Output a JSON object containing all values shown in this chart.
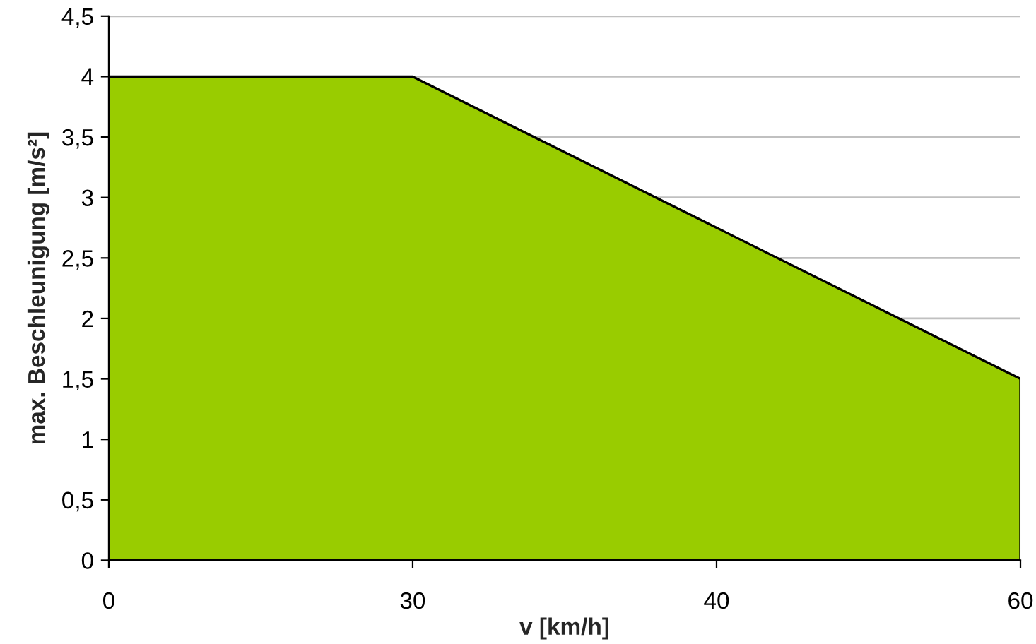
{
  "chart_data": {
    "type": "area",
    "xlabel": "v [km/h]",
    "ylabel": "max. Beschleunigung [m/s²]",
    "categories": [
      "0",
      "30",
      "40",
      "60"
    ],
    "series": [
      {
        "color": "#99cc00",
        "values": [
          4,
          4,
          2.75,
          1.5
        ]
      }
    ],
    "ylim": [
      0,
      4.5
    ],
    "yticks": [
      0,
      {
        "value": 0.5,
        "label": "0,5"
      },
      1,
      {
        "value": 1.5,
        "label": "1,5"
      },
      2,
      {
        "value": 2.5,
        "label": "2,5"
      },
      3,
      {
        "value": 3.5,
        "label": "3,5"
      },
      4,
      {
        "value": 4.5,
        "label": "4,5"
      }
    ],
    "grid": "y"
  }
}
